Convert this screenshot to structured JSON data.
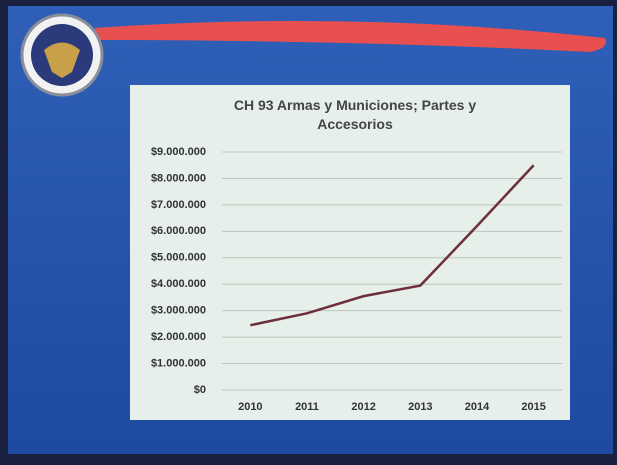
{
  "chart_data": {
    "type": "line",
    "title": "CH 93 Armas y Municiones; Partes y Accesorios",
    "categories": [
      "2010",
      "2011",
      "2012",
      "2013",
      "2014",
      "2015"
    ],
    "series": [
      {
        "name": "CH 93",
        "color": "#6e2f3c",
        "values": [
          2450000,
          2900000,
          3550000,
          3950000,
          6200000,
          8500000
        ]
      }
    ],
    "ylim": [
      0,
      9000000
    ],
    "yticks": [
      {
        "value": 0,
        "label": "$0"
      },
      {
        "value": 1000000,
        "label": "$1.000.000"
      },
      {
        "value": 2000000,
        "label": "$2.000.000"
      },
      {
        "value": 3000000,
        "label": "$3.000.000"
      },
      {
        "value": 4000000,
        "label": "$4.000.000"
      },
      {
        "value": 5000000,
        "label": "$5.000.000"
      },
      {
        "value": 6000000,
        "label": "$6.000.000"
      },
      {
        "value": 7000000,
        "label": "$7.000.000"
      },
      {
        "value": 8000000,
        "label": "$8.000.000"
      },
      {
        "value": 9000000,
        "label": "$9.000.000"
      }
    ],
    "grid": true
  }
}
